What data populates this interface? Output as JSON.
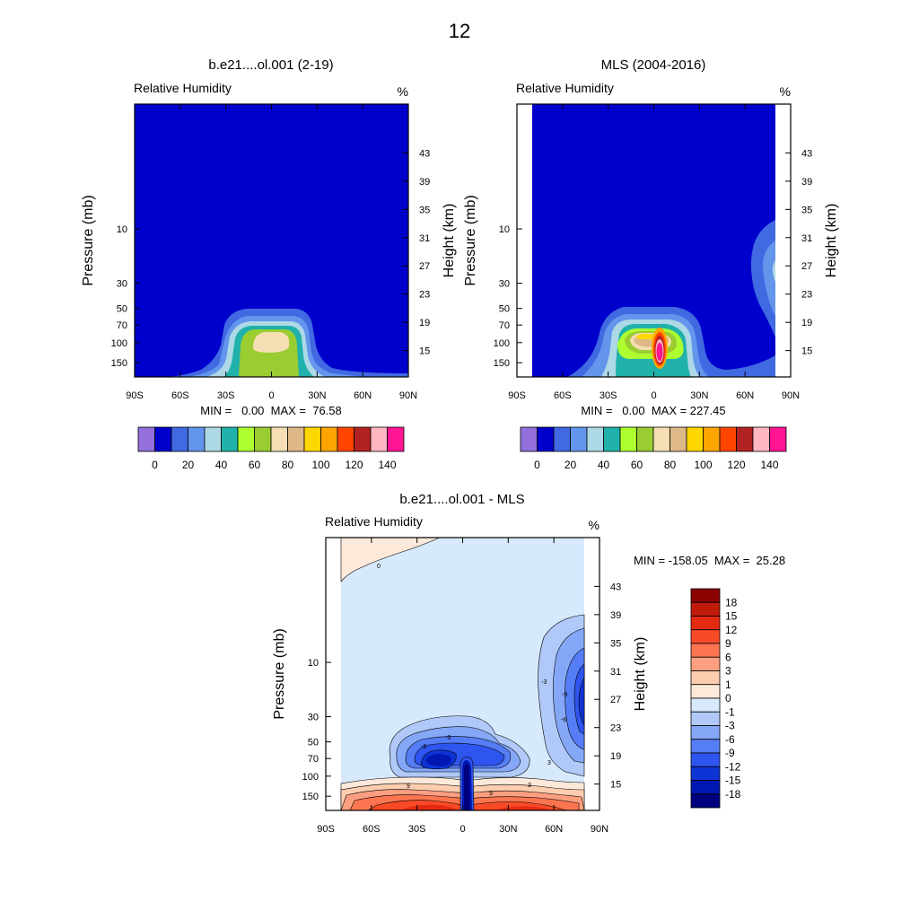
{
  "figure_title": "12",
  "colors": {
    "rh_levels": [
      "#9370DB",
      "#0000CD",
      "#4169E1",
      "#6495ED",
      "#ADD8E6",
      "#20B2AA",
      "#ADFF2F",
      "#9ACD32",
      "#F5DEB3",
      "#DEB887",
      "#FFD700",
      "#FFA500",
      "#FF4500",
      "#B22222",
      "#FFB6C1",
      "#FF1493"
    ],
    "diff_levels": [
      "#00007F",
      "#0018B3",
      "#0E34D6",
      "#2F55F0",
      "#557DF5",
      "#85A7F7",
      "#B0C9F8",
      "#D7E9FC",
      "#FDE9DA",
      "#FDCDB0",
      "#FC9F80",
      "#FB7550",
      "#F84A27",
      "#E52A14",
      "#C01B0A",
      "#8B0000"
    ]
  },
  "chart_data": [
    {
      "type": "heatmap",
      "id": "model",
      "title": "b.e21....ol.001 (2-19)",
      "left_string": "Relative Humidity",
      "right_string": "%",
      "ylabel": "Pressure (mb)",
      "ylabel_right": "Height (km)",
      "x_ticks": [
        "90S",
        "60S",
        "30S",
        "0",
        "30N",
        "60N",
        "90N"
      ],
      "p_ticks": [
        "10",
        "30",
        "50",
        "70",
        "100",
        "150"
      ],
      "z_ticks": [
        "43",
        "39",
        "35",
        "31",
        "27",
        "23",
        "19",
        "15"
      ],
      "stats": "MIN =   0.00  MAX =  76.58",
      "xlim": [
        -90,
        90
      ],
      "ylim_mb": [
        200,
        0.8
      ],
      "min": 0.0,
      "max": 76.58,
      "colorbar_labels": [
        "0",
        "20",
        "40",
        "60",
        "80",
        "100",
        "120",
        "140"
      ]
    },
    {
      "type": "heatmap",
      "id": "mls",
      "title": "MLS (2004-2016)",
      "left_string": "Relative Humidity",
      "right_string": "%",
      "ylabel": "Pressure (mb)",
      "ylabel_right": "Height (km)",
      "x_ticks": [
        "90S",
        "60S",
        "30S",
        "0",
        "30N",
        "60N",
        "90N"
      ],
      "p_ticks": [
        "10",
        "30",
        "50",
        "70",
        "100",
        "150"
      ],
      "z_ticks": [
        "43",
        "39",
        "35",
        "31",
        "27",
        "23",
        "19",
        "15"
      ],
      "stats": "MIN =   0.00  MAX = 227.45",
      "xlim": [
        -90,
        90
      ],
      "data_lat_range": [
        -80,
        80
      ],
      "min": 0.0,
      "max": 227.45,
      "colorbar_labels": [
        "0",
        "20",
        "40",
        "60",
        "80",
        "100",
        "120",
        "140"
      ]
    },
    {
      "type": "heatmap",
      "id": "diff",
      "title": "b.e21....ol.001 - MLS",
      "left_string": "Relative Humidity",
      "right_string": "%",
      "ylabel": "Pressure (mb)",
      "ylabel_right": "Height (km)",
      "x_ticks": [
        "90S",
        "60S",
        "30S",
        "0",
        "30N",
        "60N",
        "90N"
      ],
      "p_ticks": [
        "10",
        "30",
        "50",
        "70",
        "100",
        "150"
      ],
      "z_ticks": [
        "43",
        "39",
        "35",
        "31",
        "27",
        "23",
        "19",
        "15"
      ],
      "stats": "MIN = -158.05  MAX =  25.28",
      "xlim": [
        -90,
        90
      ],
      "data_lat_range": [
        -80,
        80
      ],
      "min": -158.05,
      "max": 25.28,
      "contour_labels": [
        "0",
        "-3",
        "-9",
        "-6",
        "-3",
        "-6",
        "3",
        "9",
        "9",
        "3"
      ],
      "colorbar_labels": [
        "18",
        "15",
        "12",
        "9",
        "6",
        "3",
        "1",
        "0",
        "-1",
        "-3",
        "-6",
        "-9",
        "-12",
        "-15",
        "-18"
      ]
    }
  ]
}
